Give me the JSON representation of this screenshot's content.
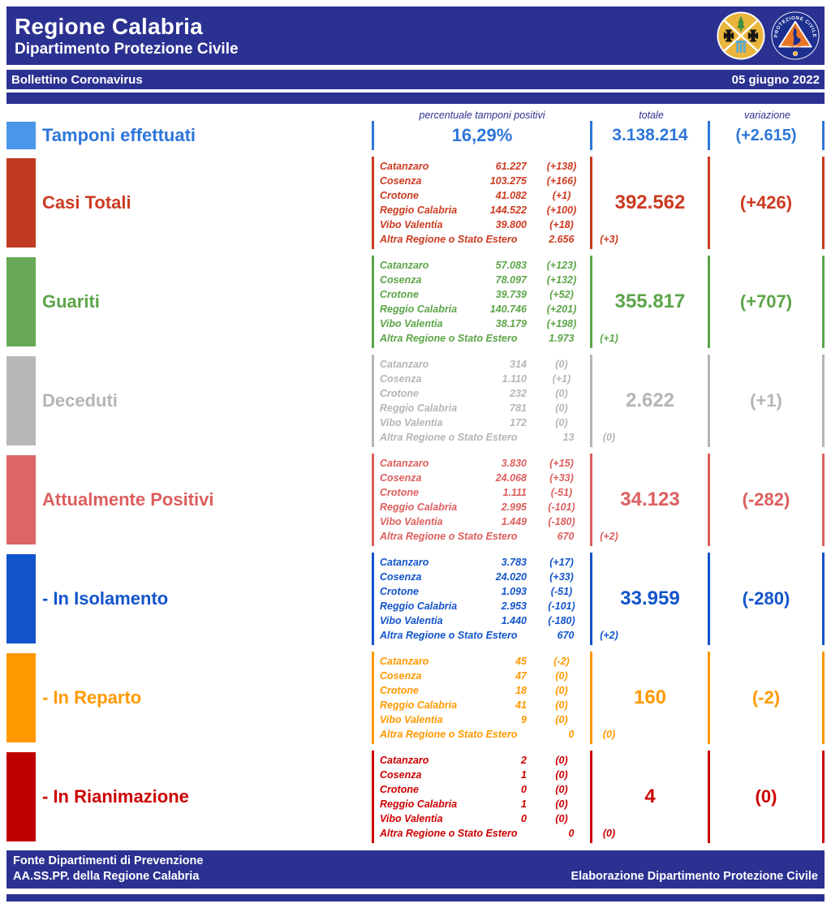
{
  "theme": {
    "navy": "#2B3191"
  },
  "header": {
    "title": "Regione Calabria",
    "subtitle": "Dipartimento Protezione Civile",
    "bulletin_title": "Bollettino Coronavirus",
    "date": "05 giugno 2022"
  },
  "columns": {
    "percentage": "percentuale tamponi positivi",
    "total": "totale",
    "variation": "variazione"
  },
  "tamponi": {
    "label": "Tamponi effettuati",
    "percentage": "16,29%",
    "total": "3.138.214",
    "variation": "(+2.615)",
    "color": "#2E76D9",
    "swatch_color": "#4B96EA"
  },
  "sections": [
    {
      "label": "Casi Totali",
      "color": "#CC3B21",
      "swatch_color": "#C23A21",
      "total": "392.562",
      "variation": "(+426)",
      "rows": [
        {
          "name": "Catanzaro",
          "value": "61.227",
          "change": "(+138)"
        },
        {
          "name": "Cosenza",
          "value": "103.275",
          "change": "(+166)"
        },
        {
          "name": "Crotone",
          "value": "41.082",
          "change": "(+1)"
        },
        {
          "name": "Reggio Calabria",
          "value": "144.522",
          "change": "(+100)"
        },
        {
          "name": "Vibo Valentia",
          "value": "39.800",
          "change": "(+18)"
        },
        {
          "name": "Altra Regione o Stato Estero",
          "value": "2.656",
          "change": "(+3)"
        }
      ]
    },
    {
      "label": "Guariti",
      "color": "#5CA548",
      "swatch_color": "#67A957",
      "total": "355.817",
      "variation": "(+707)",
      "rows": [
        {
          "name": "Catanzaro",
          "value": "57.083",
          "change": "(+123)"
        },
        {
          "name": "Cosenza",
          "value": "78.097",
          "change": "(+132)"
        },
        {
          "name": "Crotone",
          "value": "39.739",
          "change": "(+52)"
        },
        {
          "name": "Reggio Calabria",
          "value": "140.746",
          "change": "(+201)"
        },
        {
          "name": "Vibo Valentia",
          "value": "38.179",
          "change": "(+198)"
        },
        {
          "name": "Altra Regione o Stato Estero",
          "value": "1.973",
          "change": "(+1)"
        }
      ]
    },
    {
      "label": "Deceduti",
      "color": "#B5B5B5",
      "swatch_color": "#B7B7B7",
      "total": "2.622",
      "variation": "(+1)",
      "rows": [
        {
          "name": "Catanzaro",
          "value": "314",
          "change": "(0)"
        },
        {
          "name": "Cosenza",
          "value": "1.110",
          "change": "(+1)"
        },
        {
          "name": "Crotone",
          "value": "232",
          "change": "(0)"
        },
        {
          "name": "Reggio Calabria",
          "value": "781",
          "change": "(0)"
        },
        {
          "name": "Vibo Valentia",
          "value": "172",
          "change": "(0)"
        },
        {
          "name": "Altra Regione o Stato Estero",
          "value": "13",
          "change": "(0)"
        }
      ]
    },
    {
      "label": "Attualmente Positivi",
      "color": "#DD5E5E",
      "swatch_color": "#DC6565",
      "total": "34.123",
      "variation": "(-282)",
      "rows": [
        {
          "name": "Catanzaro",
          "value": "3.830",
          "change": "(+15)"
        },
        {
          "name": "Cosenza",
          "value": "24.068",
          "change": "(+33)"
        },
        {
          "name": "Crotone",
          "value": "1.111",
          "change": "(-51)"
        },
        {
          "name": "Reggio Calabria",
          "value": "2.995",
          "change": "(-101)"
        },
        {
          "name": "Vibo Valentia",
          "value": "1.449",
          "change": "(-180)"
        },
        {
          "name": "Altra Regione o Stato Estero",
          "value": "670",
          "change": "(+2)"
        }
      ]
    },
    {
      "label": "- In Isolamento",
      "color": "#1254CB",
      "swatch_color": "#1254CB",
      "total": "33.959",
      "variation": "(-280)",
      "rows": [
        {
          "name": "Catanzaro",
          "value": "3.783",
          "change": "(+17)"
        },
        {
          "name": "Cosenza",
          "value": "24.020",
          "change": "(+33)"
        },
        {
          "name": "Crotone",
          "value": "1.093",
          "change": "(-51)"
        },
        {
          "name": "Reggio Calabria",
          "value": "2.953",
          "change": "(-101)"
        },
        {
          "name": "Vibo Valentia",
          "value": "1.440",
          "change": "(-180)"
        },
        {
          "name": "Altra Regione o Stato Estero",
          "value": "670",
          "change": "(+2)"
        }
      ]
    },
    {
      "label": "- In Reparto",
      "color": "#FF9900",
      "swatch_color": "#FF9900",
      "total": "160",
      "variation": "(-2)",
      "rows": [
        {
          "name": "Catanzaro",
          "value": "45",
          "change": "(-2)"
        },
        {
          "name": "Cosenza",
          "value": "47",
          "change": "(0)"
        },
        {
          "name": "Crotone",
          "value": "18",
          "change": "(0)"
        },
        {
          "name": "Reggio Calabria",
          "value": "41",
          "change": "(0)"
        },
        {
          "name": "Vibo Valentia",
          "value": "9",
          "change": "(0)"
        },
        {
          "name": "Altra Regione o Stato Estero",
          "value": "0",
          "change": "(0)"
        }
      ]
    },
    {
      "label": "- In Rianimazione",
      "color": "#CC0000",
      "swatch_color": "#C00000",
      "total": "4",
      "variation": "(0)",
      "rows": [
        {
          "name": "Catanzaro",
          "value": "2",
          "change": "(0)"
        },
        {
          "name": "Cosenza",
          "value": "1",
          "change": "(0)"
        },
        {
          "name": "Crotone",
          "value": "0",
          "change": "(0)"
        },
        {
          "name": "Reggio Calabria",
          "value": "1",
          "change": "(0)"
        },
        {
          "name": "Vibo Valentia",
          "value": "0",
          "change": "(0)"
        },
        {
          "name": "Altra Regione o Stato Estero",
          "value": "0",
          "change": "(0)"
        }
      ]
    }
  ],
  "footer": {
    "source_line1": "Fonte Dipartimenti di Prevenzione",
    "source_line2": "AA.SS.PP.  della Regione Calabria",
    "elaboration": "Elaborazione Dipartimento Protezione Civile"
  },
  "logos": {
    "regione": "regione-calabria-logo",
    "protezione_civile": "protezione-civile-logo",
    "pc_top_text": "PROTEZIONE CIVILE",
    "pc_bottom_text": "Regione Calabria"
  }
}
